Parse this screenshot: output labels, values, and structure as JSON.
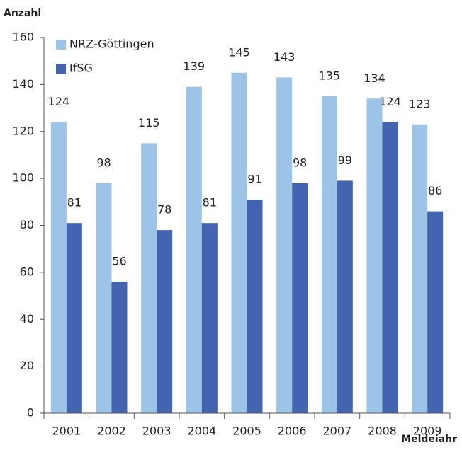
{
  "chart_data": {
    "type": "bar",
    "y_label": "Anzahl",
    "x_label": "Meldeiahr",
    "categories": [
      "2001",
      "2002",
      "2003",
      "2004",
      "2005",
      "2006",
      "2007",
      "2008",
      "2009"
    ],
    "series": [
      {
        "name": "NRZ-Göttingen",
        "color": "#9dc3e6",
        "values": [
          124,
          98,
          115,
          139,
          145,
          143,
          135,
          134,
          123
        ]
      },
      {
        "name": "IfSG",
        "color": "#4463b0",
        "values": [
          81,
          56,
          78,
          81,
          91,
          98,
          99,
          124,
          86
        ]
      }
    ],
    "ylim": [
      0,
      160
    ],
    "yticks": [
      0,
      20,
      40,
      60,
      80,
      100,
      120,
      140,
      160
    ],
    "grid": false,
    "legend": "top-left"
  }
}
